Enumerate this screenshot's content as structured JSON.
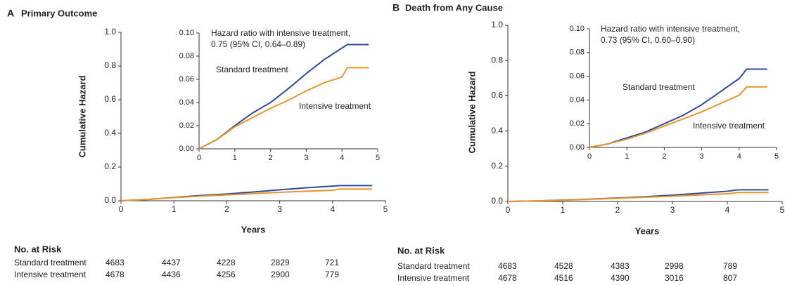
{
  "chart_data": [
    {
      "type": "line",
      "label": "A",
      "title": "Primary Outcome",
      "xlabel": "Years",
      "ylabel": "Cumulative Hazard",
      "xlim": [
        0,
        5
      ],
      "ylim": [
        0,
        1
      ],
      "xticks": [
        0,
        1,
        2,
        3,
        4,
        5
      ],
      "yticks": [
        {
          "value": 0,
          "label": "0.0"
        },
        {
          "value": 0.2,
          "label": "0.2"
        },
        {
          "value": 0.4,
          "label": "0.4"
        },
        {
          "value": 0.6,
          "label": "0.6"
        },
        {
          "value": 0.8,
          "label": "0.8"
        },
        {
          "value": 1,
          "label": "1.0"
        }
      ],
      "x": [
        0,
        0.5,
        1,
        1.5,
        2,
        2.5,
        3,
        3.5,
        4,
        4.15,
        4.75
      ],
      "series": [
        {
          "name": "Standard treatment",
          "color": "#2e4a9e",
          "values": [
            0,
            0.008,
            0.02,
            0.031,
            0.04,
            0.052,
            0.065,
            0.077,
            0.087,
            0.09,
            0.09
          ]
        },
        {
          "name": "Intensive treatment",
          "color": "#e8952c",
          "values": [
            0,
            0.008,
            0.019,
            0.027,
            0.035,
            0.042,
            0.05,
            0.057,
            0.062,
            0.07,
            0.07
          ]
        }
      ],
      "inset": {
        "xlim": [
          0,
          5
        ],
        "ylim": [
          0,
          0.1
        ],
        "xticks": [
          0,
          1,
          2,
          3,
          4,
          5
        ],
        "yticks": [
          {
            "value": 0,
            "label": "0.00"
          },
          {
            "value": 0.02,
            "label": "0.02"
          },
          {
            "value": 0.04,
            "label": "0.04"
          },
          {
            "value": 0.06,
            "label": "0.06"
          },
          {
            "value": 0.08,
            "label": "0.08"
          },
          {
            "value": 0.1,
            "label": "0.10"
          }
        ],
        "annotation": [
          "Hazard ratio with intensive treatment,",
          "0.75 (95% CI, 0.64–0.89)"
        ]
      },
      "risk_table": {
        "title": "No. at Risk",
        "rows": [
          {
            "name": "Standard treatment",
            "values": [
              4683,
              4437,
              4228,
              2829,
              721
            ]
          },
          {
            "name": "Intensive treatment",
            "values": [
              4678,
              4436,
              4256,
              2900,
              779
            ]
          }
        ]
      }
    },
    {
      "type": "line",
      "label": "B",
      "title": "Death from Any Cause",
      "xlabel": "Years",
      "ylabel": "Cumulative Hazard",
      "xlim": [
        0,
        5
      ],
      "ylim": [
        0,
        1
      ],
      "xticks": [
        0,
        1,
        2,
        3,
        4,
        5
      ],
      "yticks": [
        {
          "value": 0,
          "label": "0.0"
        },
        {
          "value": 0.2,
          "label": "0.2"
        },
        {
          "value": 0.4,
          "label": "0.4"
        },
        {
          "value": 0.6,
          "label": "0.6"
        },
        {
          "value": 0.8,
          "label": "0.8"
        },
        {
          "value": 1,
          "label": "1.0"
        }
      ],
      "x": [
        0,
        0.5,
        1,
        1.5,
        2,
        2.5,
        3,
        3.5,
        4,
        4.2,
        4.75
      ],
      "series": [
        {
          "name": "Standard treatment",
          "color": "#2e4a9e",
          "values": [
            0,
            0.003,
            0.008,
            0.013,
            0.02,
            0.027,
            0.036,
            0.047,
            0.058,
            0.066,
            0.066
          ]
        },
        {
          "name": "Intensive treatment",
          "color": "#e8952c",
          "values": [
            0,
            0.003,
            0.007,
            0.012,
            0.018,
            0.024,
            0.03,
            0.037,
            0.044,
            0.051,
            0.051
          ]
        }
      ],
      "inset": {
        "xlim": [
          0,
          5
        ],
        "ylim": [
          0,
          0.1
        ],
        "xticks": [
          0,
          1,
          2,
          3,
          4,
          5
        ],
        "yticks": [
          {
            "value": 0,
            "label": "0.00"
          },
          {
            "value": 0.02,
            "label": "0.02"
          },
          {
            "value": 0.04,
            "label": "0.04"
          },
          {
            "value": 0.06,
            "label": "0.06"
          },
          {
            "value": 0.08,
            "label": "0.08"
          },
          {
            "value": 0.1,
            "label": "0.10"
          }
        ],
        "annotation": [
          "Hazard ratio with intensive treatment,",
          "0.73 (95% CI, 0.60–0.90)"
        ]
      },
      "risk_table": {
        "title": "No. at Risk",
        "rows": [
          {
            "name": "Standard treatment",
            "values": [
              4683,
              4528,
              4383,
              2998,
              789
            ]
          },
          {
            "name": "Intensive treatment",
            "values": [
              4678,
              4516,
              4390,
              3016,
              807
            ]
          }
        ]
      }
    }
  ]
}
